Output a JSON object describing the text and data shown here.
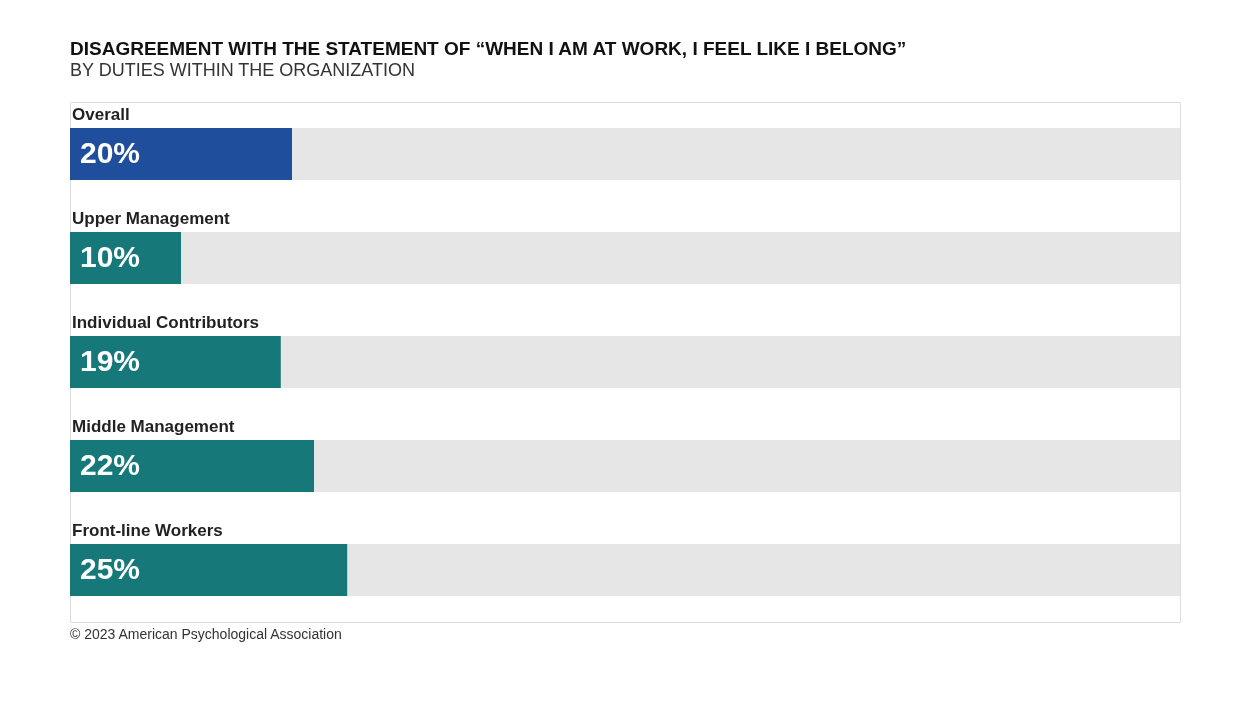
{
  "chart_data": {
    "type": "bar",
    "orientation": "horizontal",
    "stacked": true,
    "title": "DISAGREEMENT WITH THE STATEMENT OF “WHEN I AM AT WORK, I FEEL LIKE I BELONG”",
    "subtitle": "BY DUTIES WITHIN THE ORGANIZATION",
    "categories": [
      "Overall",
      "Upper Management",
      "Individual Contributors",
      "Middle Management",
      "Front-line Workers"
    ],
    "series": [
      {
        "colors": [
          "#1f4e9c",
          "#17787a",
          "#17787a",
          "#17787a",
          "#17787a"
        ],
        "values": [
          20,
          10,
          19,
          22,
          25
        ],
        "value_labels": [
          "20%",
          "10%",
          "19%",
          "22%",
          "25%"
        ]
      },
      {
        "color": "#e6e6e6",
        "values": [
          80,
          90,
          81,
          78,
          75
        ]
      }
    ],
    "xlim": [
      0,
      100
    ],
    "tick_labels": false,
    "annotations": [
      "© 2023 American Psychological Association"
    ]
  }
}
